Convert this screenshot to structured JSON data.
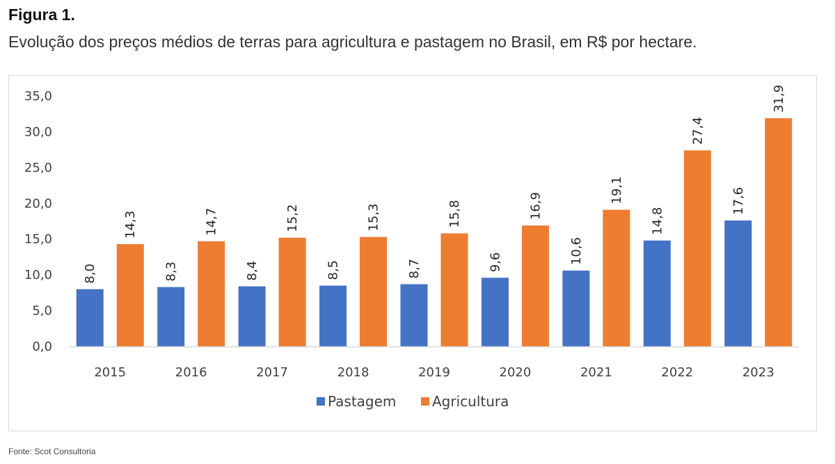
{
  "figure": {
    "title": "Figura 1.",
    "subtitle": "Evolução dos preços médios de terras para agricultura e pastagem no Brasil, em R$ por hectare.",
    "source": "Fonte: Scot Consultoria"
  },
  "chart_data": {
    "type": "bar",
    "title": "Evolução dos preços médios de terras para agricultura e pastagem no Brasil, em R$ por hectare.",
    "xlabel": "",
    "ylabel": "",
    "categories": [
      "2015",
      "2016",
      "2017",
      "2018",
      "2019",
      "2020",
      "2021",
      "2022",
      "2023"
    ],
    "series": [
      {
        "name": "Pastagem",
        "color": "#4472c4",
        "values": [
          8.0,
          8.3,
          8.4,
          8.5,
          8.7,
          9.6,
          10.6,
          14.8,
          17.6
        ],
        "labels": [
          "8,0",
          "8,3",
          "8,4",
          "8,5",
          "8,7",
          "9,6",
          "10,6",
          "14,8",
          "17,6"
        ]
      },
      {
        "name": "Agricultura",
        "color": "#ed7d31",
        "values": [
          14.3,
          14.7,
          15.2,
          15.3,
          15.8,
          16.9,
          19.1,
          27.4,
          31.9
        ],
        "labels": [
          "14,3",
          "14,7",
          "15,2",
          "15,3",
          "15,8",
          "16,9",
          "19,1",
          "27,4",
          "31,9"
        ]
      }
    ],
    "ylim": [
      0,
      35
    ],
    "yticks": [
      0,
      5,
      10,
      15,
      20,
      25,
      30,
      35
    ],
    "ytick_labels": [
      "0,0",
      "5,0",
      "10,0",
      "15,0",
      "20,0",
      "25,0",
      "30,0",
      "35,0"
    ],
    "grid": false,
    "legend": "bottom-center",
    "data_labels": "rotated-vertical-above-bars"
  }
}
